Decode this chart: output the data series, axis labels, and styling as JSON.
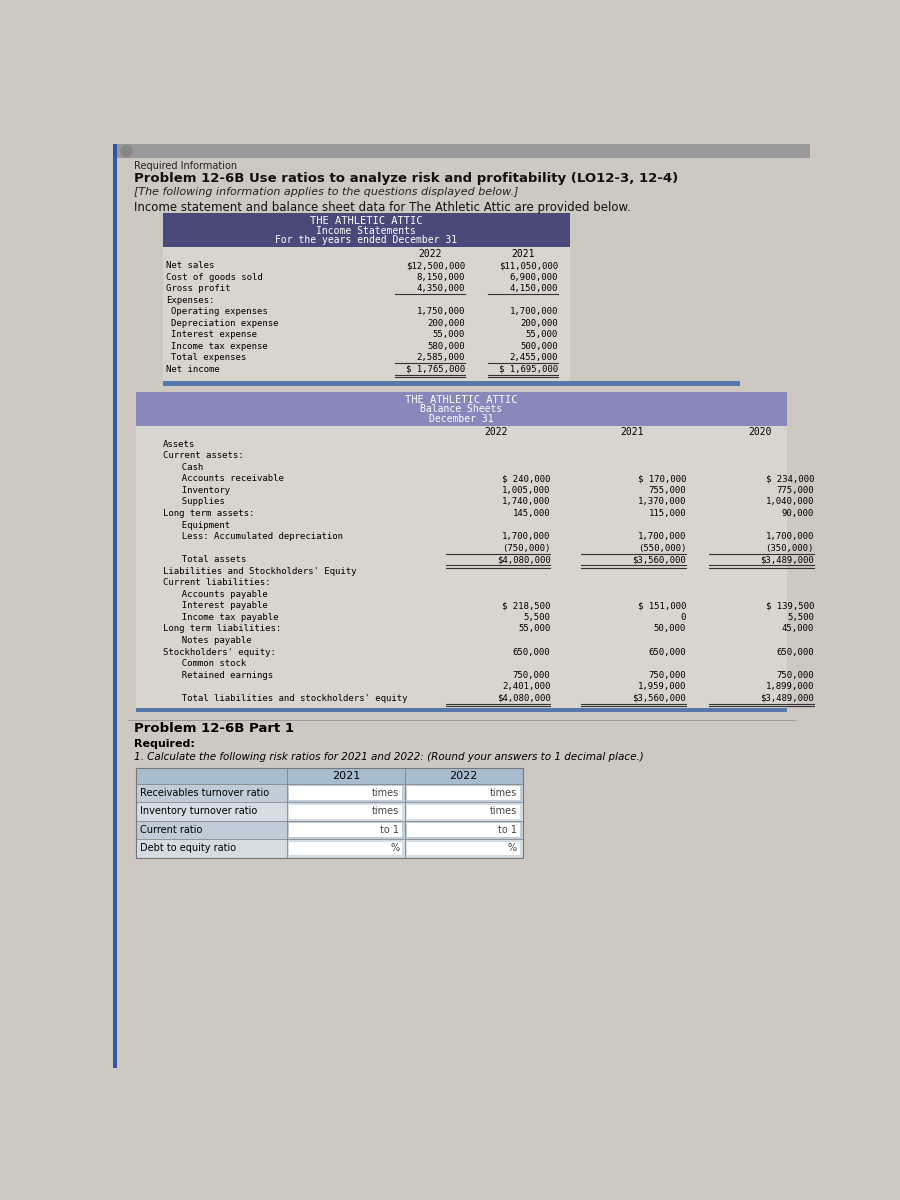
{
  "page_bg": "#cdc8c2",
  "table_body_bg": "#d8d4ce",
  "inc_header_bg": "#4a4a7a",
  "bs_header_bg": "#8888bb",
  "light_blue_row": "#a8bcd0",
  "title_required": "Required Information",
  "title_problem": "Problem 12-6B Use ratios to analyze risk and profitability (LO12-3, 12-4)",
  "title_italic": "[The following information applies to the questions displayed below.]",
  "title_income": "Income statement and balance sheet data for The Athletic Attic are provided below.",
  "inc_company": "THE ATHLETIC ATTIC",
  "inc_title": "Income Statements",
  "inc_subtitle": "For the years ended December 31",
  "inc_rows": [
    [
      "Net sales",
      "$12,500,000",
      "$11,050,000",
      false,
      false
    ],
    [
      "Cost of goods sold",
      "8,150,000",
      "6,900,000",
      false,
      false
    ],
    [
      "Gross profit",
      "4,350,000",
      "4,150,000",
      true,
      false
    ],
    [
      "Expenses:",
      "",
      "",
      false,
      false
    ],
    [
      "  Operating expenses",
      "1,750,000",
      "1,700,000",
      false,
      false
    ],
    [
      "  Depreciation expense",
      "200,000",
      "200,000",
      false,
      false
    ],
    [
      "  Interest expense",
      "55,000",
      "55,000",
      false,
      false
    ],
    [
      "  Income tax expense",
      "580,000",
      "500,000",
      false,
      false
    ],
    [
      "  Total expenses",
      "2,585,000",
      "2,455,000",
      true,
      false
    ],
    [
      "Net income",
      "$ 1,765,000",
      "$ 1,695,000",
      false,
      true
    ]
  ],
  "bs_company": "THE ATHLETIC ATTIC",
  "bs_title": "Balance Sheets",
  "bs_subtitle": "December 31",
  "part1_title": "Problem 12-6B Part 1",
  "required_label": "Required:",
  "required_instruction": "1. Calculate the following risk ratios for 2021 and 2022: (Round your answers to 1 decimal place.)",
  "ratio_rows": [
    [
      "Receivables turnover ratio",
      "times",
      "times"
    ],
    [
      "Inventory turnover ratio",
      "times",
      "times"
    ],
    [
      "Current ratio",
      "to 1",
      "to 1"
    ],
    [
      "Debt to equity ratio",
      "%",
      "%"
    ]
  ]
}
